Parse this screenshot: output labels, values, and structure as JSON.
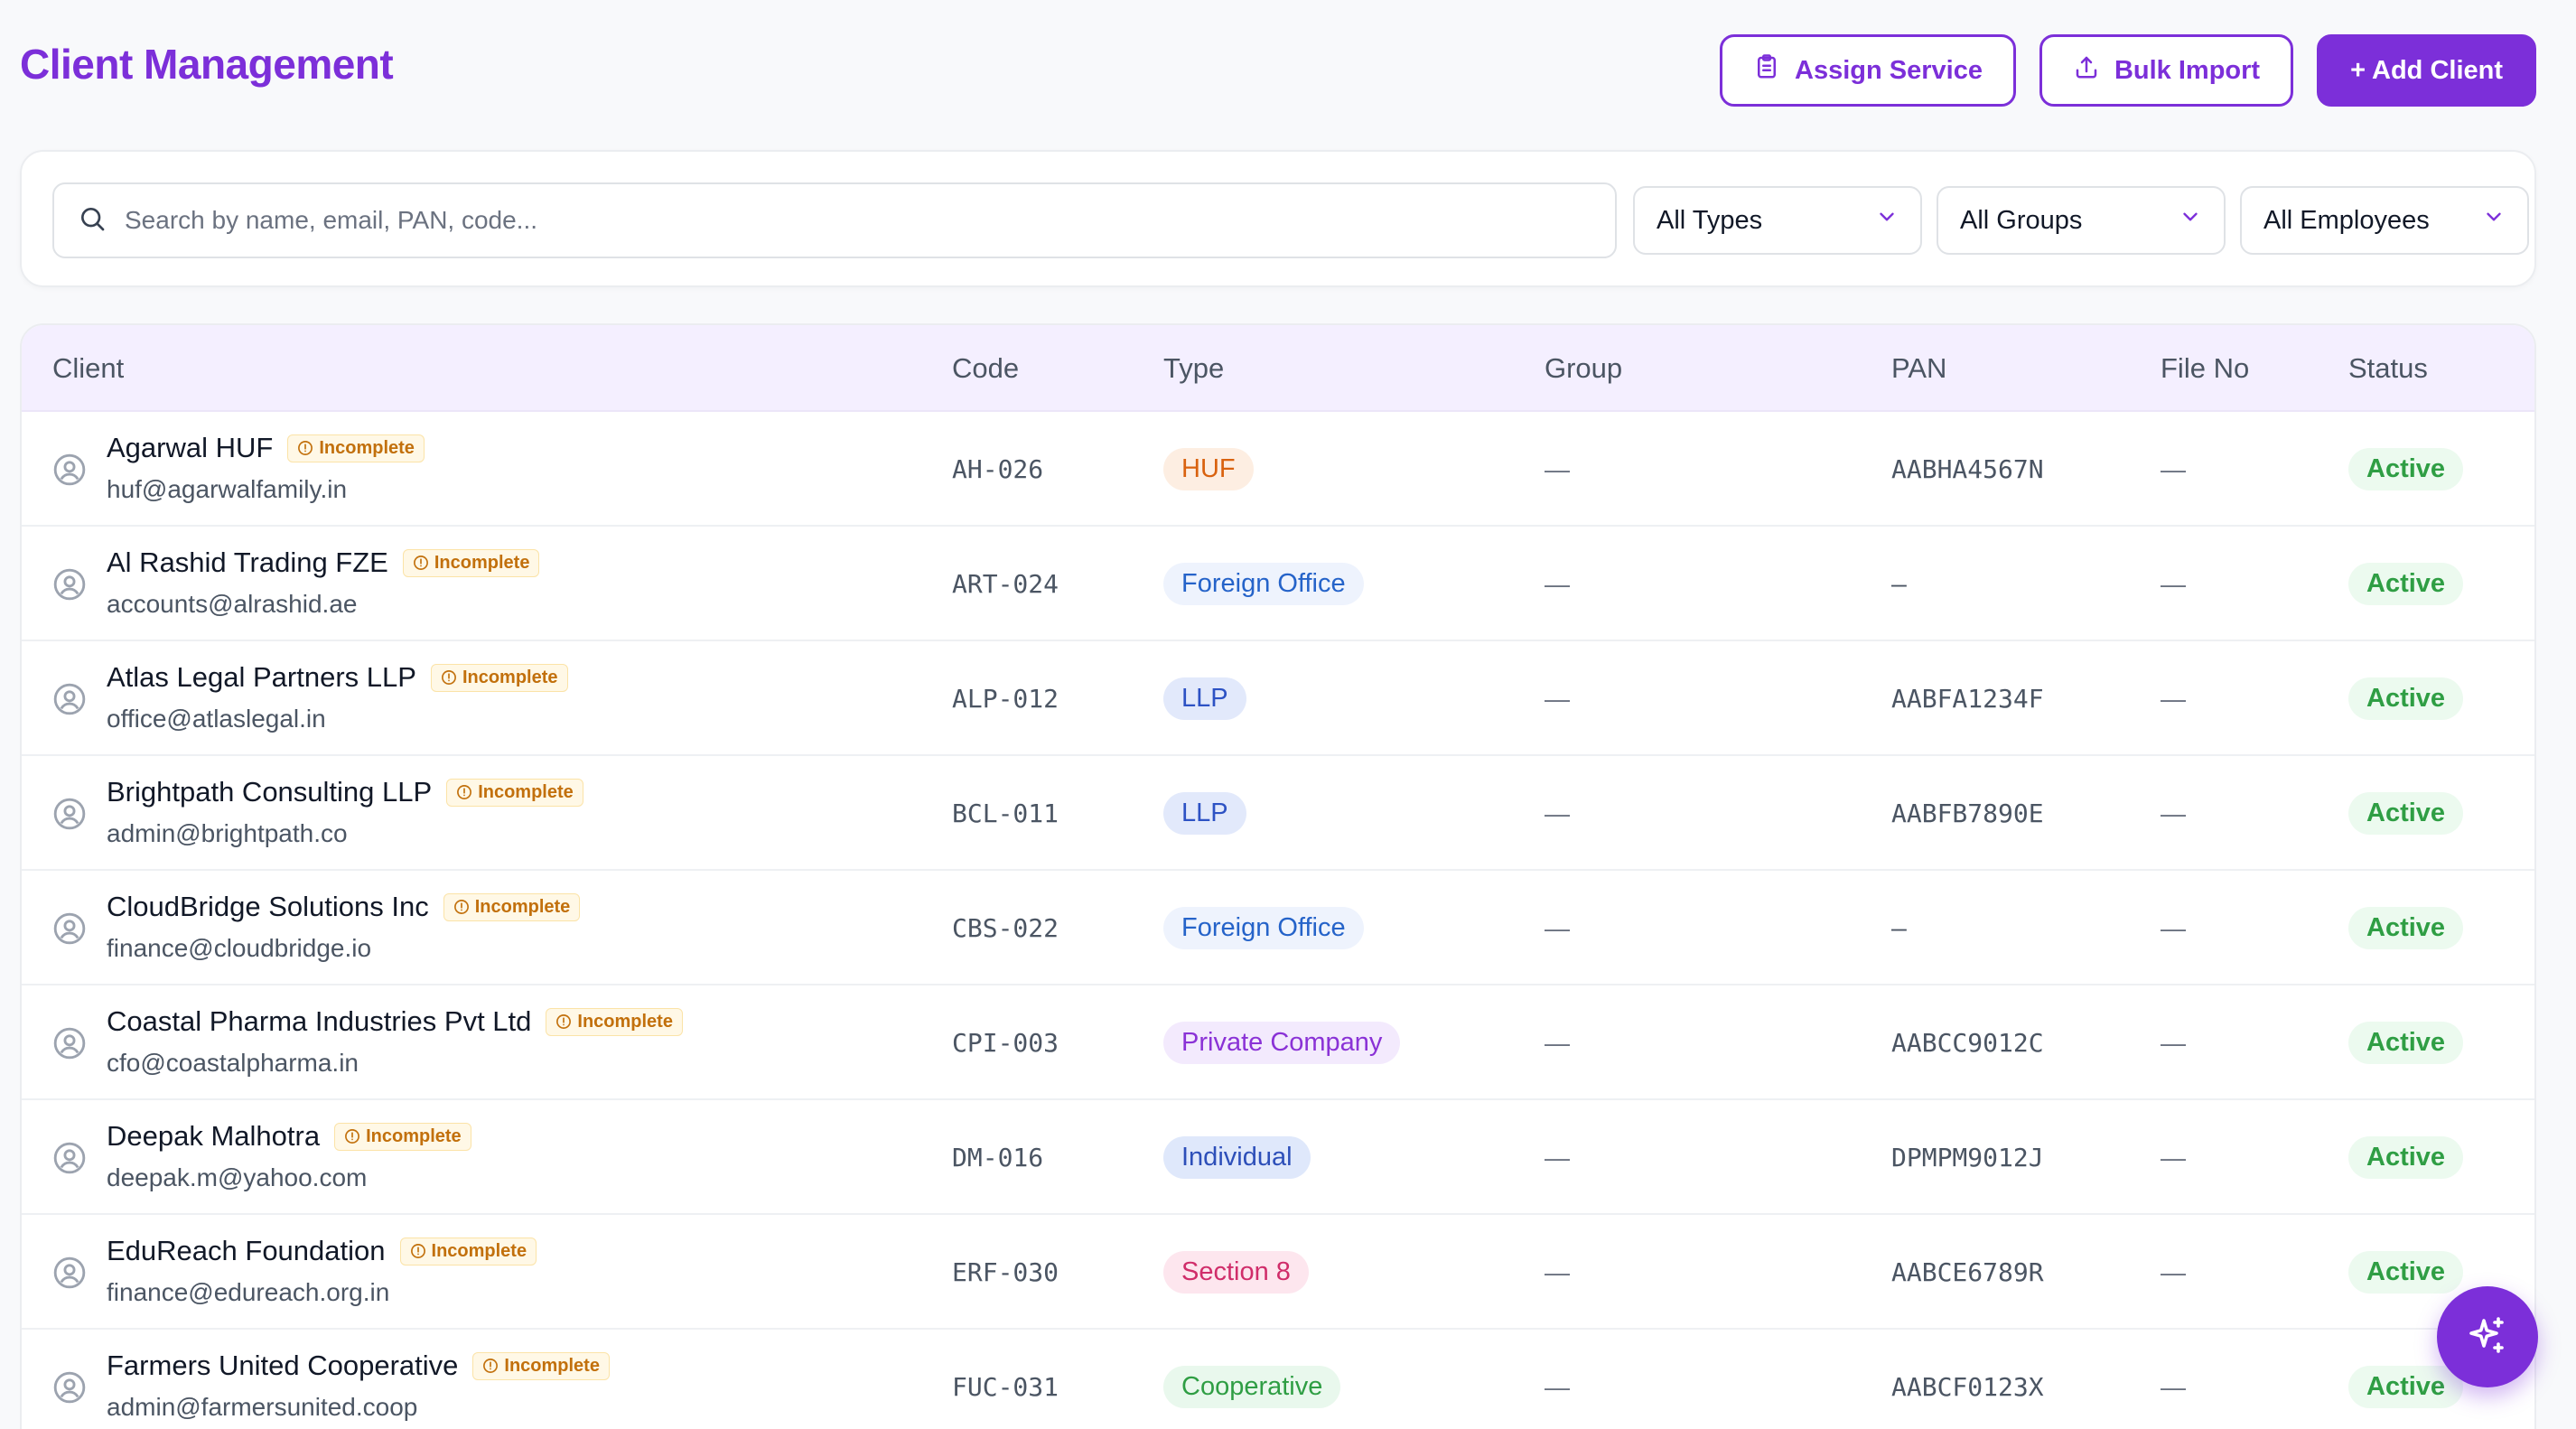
{
  "page": {
    "title": "Client Management"
  },
  "toolbar": {
    "assign_label": "Assign Service",
    "import_label": "Bulk Import",
    "add_label": "+ Add Client"
  },
  "filters": {
    "search_placeholder": "Search by name, email, PAN, code...",
    "type_value": "All Types",
    "group_value": "All Groups",
    "employee_value": "All Employees"
  },
  "table": {
    "headers": {
      "client": "Client",
      "code": "Code",
      "type": "Type",
      "group": "Group",
      "pan": "PAN",
      "file_no": "File No",
      "status": "Status"
    },
    "rows": [
      {
        "name": "Agarwal HUF",
        "badge": "Incomplete",
        "email": "huf@agarwalfamily.in",
        "code": "AH-026",
        "type": "HUF",
        "type_style": "huf",
        "group": "—",
        "pan": "AABHA4567N",
        "file_no": "—",
        "status": "Active"
      },
      {
        "name": "Al Rashid Trading FZE",
        "badge": "Incomplete",
        "email": "accounts@alrashid.ae",
        "code": "ART-024",
        "type": "Foreign Office",
        "type_style": "foreign",
        "group": "—",
        "pan": "–",
        "file_no": "—",
        "status": "Active"
      },
      {
        "name": "Atlas Legal Partners LLP",
        "badge": "Incomplete",
        "email": "office@atlaslegal.in",
        "code": "ALP-012",
        "type": "LLP",
        "type_style": "llp",
        "group": "—",
        "pan": "AABFA1234F",
        "file_no": "—",
        "status": "Active"
      },
      {
        "name": "Brightpath Consulting LLP",
        "badge": "Incomplete",
        "email": "admin@brightpath.co",
        "code": "BCL-011",
        "type": "LLP",
        "type_style": "llp",
        "group": "—",
        "pan": "AABFB7890E",
        "file_no": "—",
        "status": "Active"
      },
      {
        "name": "CloudBridge Solutions Inc",
        "badge": "Incomplete",
        "email": "finance@cloudbridge.io",
        "code": "CBS-022",
        "type": "Foreign Office",
        "type_style": "foreign",
        "group": "—",
        "pan": "–",
        "file_no": "—",
        "status": "Active"
      },
      {
        "name": "Coastal Pharma Industries Pvt Ltd",
        "badge": "Incomplete",
        "email": "cfo@coastalpharma.in",
        "code": "CPI-003",
        "type": "Private Company",
        "type_style": "private",
        "group": "—",
        "pan": "AABCC9012C",
        "file_no": "—",
        "status": "Active"
      },
      {
        "name": "Deepak Malhotra",
        "badge": "Incomplete",
        "email": "deepak.m@yahoo.com",
        "code": "DM-016",
        "type": "Individual",
        "type_style": "individual",
        "group": "—",
        "pan": "DPMPM9012J",
        "file_no": "—",
        "status": "Active"
      },
      {
        "name": "EduReach Foundation",
        "badge": "Incomplete",
        "email": "finance@edureach.org.in",
        "code": "ERF-030",
        "type": "Section 8",
        "type_style": "section8",
        "group": "—",
        "pan": "AABCE6789R",
        "file_no": "—",
        "status": "Active"
      },
      {
        "name": "Farmers United Cooperative",
        "badge": "Incomplete",
        "email": "admin@farmersunited.coop",
        "code": "FUC-031",
        "type": "Cooperative",
        "type_style": "coop",
        "group": "—",
        "pan": "AABCF0123X",
        "file_no": "—",
        "status": "Active"
      }
    ]
  },
  "type_colors": {
    "huf": {
      "bg": "#fdeee2",
      "fg": "#d9620f"
    },
    "foreign": {
      "bg": "#eef3fd",
      "fg": "#2563c9"
    },
    "llp": {
      "bg": "#e2e9fb",
      "fg": "#2d52c4"
    },
    "private": {
      "bg": "#f3eafd",
      "fg": "#8a32d6"
    },
    "individual": {
      "bg": "#dfe8fb",
      "fg": "#2d4fb9"
    },
    "section8": {
      "bg": "#fde6ee",
      "fg": "#d02d6a"
    },
    "coop": {
      "bg": "#e9f8ed",
      "fg": "#2f9e44"
    }
  },
  "colors": {
    "accent": "#7c2fd9",
    "status_active_bg": "#ecfaef",
    "status_active_fg": "#2f9e44",
    "incomplete_fg": "#c2700c"
  },
  "icons": {
    "assign": "clipboard-icon",
    "import": "upload-icon",
    "search": "search-icon",
    "dropdown": "chevron-down-icon",
    "avatar": "user-circle-icon",
    "incomplete": "alert-circle-icon",
    "fab": "sparkles-icon"
  }
}
